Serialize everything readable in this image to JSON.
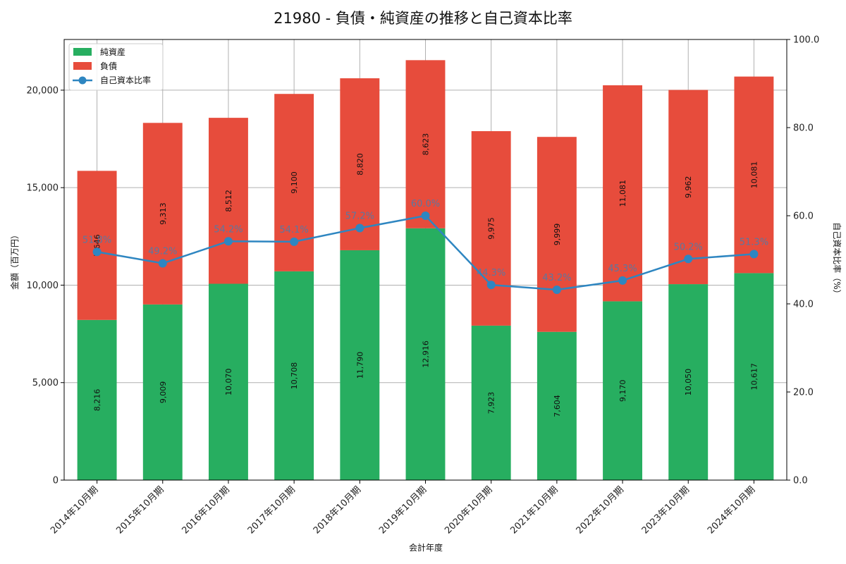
{
  "chart_data": {
    "type": "bar",
    "title": "21980 - 負債・純資産の推移と自己資本比率",
    "xlabel": "会計年度",
    "ylabel": "金額（百万円）",
    "y2label": "自己資本比率（%）",
    "categories": [
      "2014年10月期",
      "2015年10月期",
      "2016年10月期",
      "2017年10月期",
      "2018年10月期",
      "2019年10月期",
      "2020年10月期",
      "2021年10月期",
      "2022年10月期",
      "2023年10月期",
      "2024年10月期"
    ],
    "series": [
      {
        "name": "純資産",
        "kind": "bar",
        "stack": "bs",
        "color": "#27ae60",
        "values": [
          8216,
          9009,
          10070,
          10708,
          11790,
          12916,
          7923,
          7604,
          9170,
          10050,
          10617
        ],
        "labels": [
          "8,216",
          "9,009",
          "10,070",
          "10,708",
          "11,790",
          "12,916",
          "7,923",
          "7,604",
          "9,170",
          "10,050",
          "10,617"
        ]
      },
      {
        "name": "負債",
        "kind": "bar",
        "stack": "bs",
        "color": "#e74c3c",
        "values": [
          7646,
          9313,
          8512,
          9100,
          8820,
          8623,
          9975,
          9999,
          11081,
          9962,
          10081
        ],
        "labels": [
          "7,646",
          "9,313",
          "8,512",
          "9,100",
          "8,820",
          "8,623",
          "9,975",
          "9,999",
          "11,081",
          "9,962",
          "10,081"
        ]
      },
      {
        "name": "自己資本比率",
        "kind": "line",
        "axis": "right",
        "color": "#2e86c1",
        "values": [
          51.8,
          49.2,
          54.2,
          54.1,
          57.2,
          60.0,
          44.3,
          43.2,
          45.3,
          50.2,
          51.3
        ],
        "labels": [
          "51.8%",
          "49.2%",
          "54.2%",
          "54.1%",
          "57.2%",
          "60.0%",
          "44.3%",
          "43.2%",
          "45.3%",
          "50.2%",
          "51.3%"
        ]
      }
    ],
    "ylim": [
      0,
      22600
    ],
    "yticks": [
      0,
      5000,
      10000,
      15000,
      20000
    ],
    "ytick_labels": [
      "0",
      "5,000",
      "10,000",
      "15,000",
      "20,000"
    ],
    "y2lim": [
      0,
      100
    ],
    "y2ticks": [
      0,
      20,
      40,
      60,
      80,
      100
    ],
    "y2tick_labels": [
      "0.0",
      "20.0",
      "40.0",
      "60.0",
      "80.0",
      "100.0"
    ],
    "grid": true,
    "legend_position": "top-left"
  }
}
